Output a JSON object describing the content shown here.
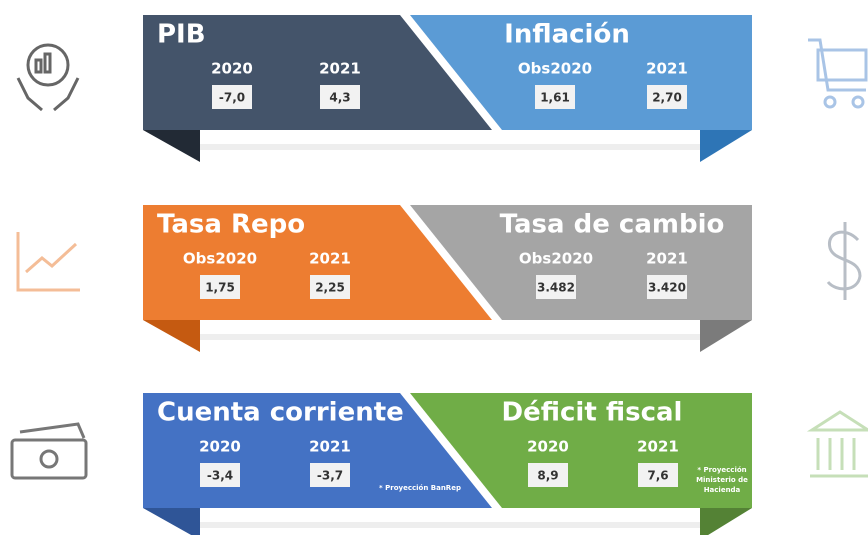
{
  "rows": [
    {
      "left": {
        "title": "PIB",
        "columns": [
          {
            "label": "2020",
            "value": "-7,0"
          },
          {
            "label": "2021",
            "value": "4,3"
          }
        ]
      },
      "right": {
        "title": "Inflación",
        "columns": [
          {
            "label": "Obs2020",
            "value": "1,61"
          },
          {
            "label": "2021",
            "value": "2,70"
          }
        ]
      }
    },
    {
      "left": {
        "title": "Tasa Repo",
        "columns": [
          {
            "label": "Obs2020",
            "value": "1,75"
          },
          {
            "label": "2021",
            "value": "2,25"
          }
        ]
      },
      "right": {
        "title": "Tasa de cambio",
        "columns": [
          {
            "label": "Obs2020",
            "value": "3.482"
          },
          {
            "label": "2021",
            "value": "3.420"
          }
        ]
      }
    },
    {
      "left": {
        "title": "Cuenta corriente",
        "columns": [
          {
            "label": "2020",
            "value": "-3,4"
          },
          {
            "label": "2021",
            "value": "-3,7"
          }
        ],
        "note_lines": [
          "* Proyección BanRep"
        ]
      },
      "right": {
        "title": "Déficit fiscal",
        "columns": [
          {
            "label": "2020",
            "value": "8,9"
          },
          {
            "label": "2021",
            "value": "7,6"
          }
        ],
        "note_lines": [
          "* Proyección",
          "Ministerio de",
          "Hacienda"
        ]
      }
    }
  ]
}
